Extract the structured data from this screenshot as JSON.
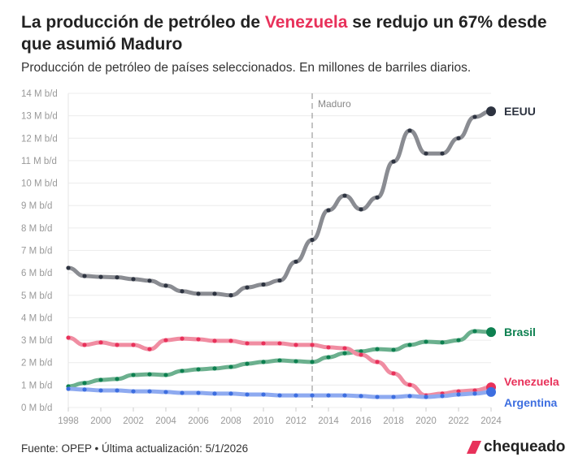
{
  "title": {
    "part1": "La producción de petróleo de ",
    "highlight": "Venezuela",
    "part2": " se redujo un 67% desde que asumió Maduro"
  },
  "subtitle": "Producción de petróleo de países seleccionados. En millones de barriles diarios.",
  "footer": "Fuente: OPEP • Última actualización: 5/1/2026",
  "logo": "chequeado",
  "chart_data": {
    "type": "line",
    "x": [
      1998,
      1999,
      2000,
      2001,
      2002,
      2003,
      2004,
      2005,
      2006,
      2007,
      2008,
      2009,
      2010,
      2011,
      2012,
      2013,
      2014,
      2015,
      2016,
      2017,
      2018,
      2019,
      2020,
      2021,
      2022,
      2023,
      2024
    ],
    "x_ticks": [
      "1998",
      "2000",
      "2002",
      "2004",
      "2006",
      "2008",
      "2010",
      "2012",
      "2014",
      "2016",
      "2018",
      "2020",
      "2022",
      "2024"
    ],
    "y_ticks": [
      "0 M b/d",
      "1 M b/d",
      "2 M b/d",
      "3 M b/d",
      "4 M b/d",
      "5 M b/d",
      "6 M b/d",
      "7 M b/d",
      "8 M b/d",
      "9 M b/d",
      "10 M b/d",
      "11 M b/d",
      "12 M b/d",
      "13 M b/d",
      "14 M b/d"
    ],
    "ylim": [
      0,
      14
    ],
    "grid": true,
    "annotation": {
      "label": "Maduro",
      "x": 2013
    },
    "series": [
      {
        "name": "EEUU",
        "color": "#2d3340",
        "line_color": "#8a8c92",
        "values": [
          6.22,
          5.86,
          5.82,
          5.8,
          5.72,
          5.65,
          5.43,
          5.18,
          5.07,
          5.07,
          5.0,
          5.35,
          5.48,
          5.66,
          6.5,
          7.47,
          8.79,
          9.44,
          8.83,
          9.36,
          10.96,
          12.34,
          11.32,
          11.32,
          12.0,
          12.95,
          13.2
        ]
      },
      {
        "name": "Brasil",
        "color": "#0d8050",
        "line_color": "#6bb08e",
        "values": [
          0.94,
          1.09,
          1.23,
          1.27,
          1.45,
          1.48,
          1.45,
          1.63,
          1.7,
          1.74,
          1.81,
          1.95,
          2.03,
          2.1,
          2.06,
          2.03,
          2.24,
          2.42,
          2.5,
          2.6,
          2.57,
          2.79,
          2.93,
          2.9,
          3.0,
          3.4,
          3.36
        ]
      },
      {
        "name": "Venezuela",
        "color": "#e8315a",
        "line_color": "#f08da2",
        "values": [
          3.11,
          2.79,
          2.9,
          2.79,
          2.79,
          2.6,
          3.0,
          3.07,
          3.04,
          2.97,
          2.97,
          2.86,
          2.86,
          2.86,
          2.79,
          2.79,
          2.68,
          2.64,
          2.35,
          2.03,
          1.52,
          1.01,
          0.54,
          0.62,
          0.72,
          0.76,
          0.9
        ]
      },
      {
        "name": "Argentina",
        "color": "#3d6ee0",
        "line_color": "#8eaaf0",
        "values": [
          0.83,
          0.8,
          0.76,
          0.76,
          0.72,
          0.72,
          0.69,
          0.65,
          0.65,
          0.62,
          0.62,
          0.58,
          0.58,
          0.54,
          0.54,
          0.54,
          0.54,
          0.54,
          0.51,
          0.47,
          0.47,
          0.51,
          0.47,
          0.51,
          0.58,
          0.62,
          0.69
        ]
      }
    ]
  }
}
